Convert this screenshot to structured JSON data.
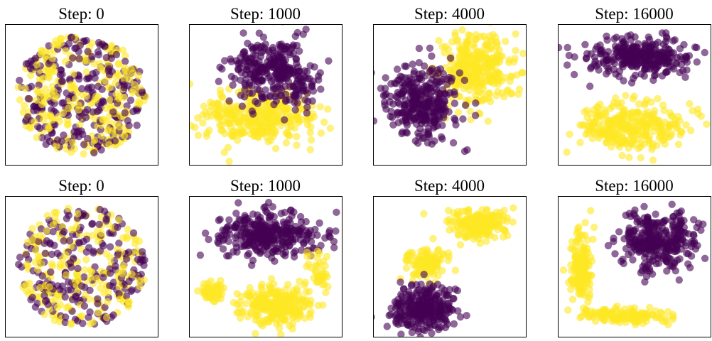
{
  "figure": {
    "rows": 2,
    "cols": 4
  },
  "colors": {
    "class_a": "#440154",
    "class_b": "#FDE725",
    "point_opacity": 0.6
  },
  "chart_data": [
    {
      "type": "scatter",
      "title": "Step: 0",
      "xticks": [],
      "yticks": [],
      "grid": false,
      "xlim": [
        -1,
        1
      ],
      "ylim": [
        -1,
        1
      ],
      "series": [
        {
          "color": "#440154",
          "pattern": "mixed",
          "values": [
            [
              0.0,
              0.0,
              0.85,
              0.85,
              250
            ]
          ]
        },
        {
          "color": "#FDE725",
          "pattern": "mixed",
          "values": [
            [
              0.0,
              0.0,
              0.85,
              0.85,
              250
            ]
          ]
        }
      ]
    },
    {
      "type": "scatter",
      "title": "Step: 1000",
      "xticks": [],
      "yticks": [],
      "grid": false,
      "xlim": [
        -1,
        1
      ],
      "ylim": [
        -1,
        1
      ],
      "series": [
        {
          "color": "#FDE725",
          "pattern": "clusters",
          "values": [
            [
              -0.05,
              -0.35,
              0.75,
              0.42,
              280
            ],
            [
              -0.55,
              -0.2,
              0.3,
              0.3,
              40
            ]
          ]
        },
        {
          "color": "#440154",
          "pattern": "clusters",
          "values": [
            [
              0.05,
              0.35,
              0.6,
              0.5,
              280
            ],
            [
              0.45,
              0.1,
              0.3,
              0.3,
              40
            ]
          ]
        }
      ]
    },
    {
      "type": "scatter",
      "title": "Step: 4000",
      "xticks": [],
      "yticks": [],
      "grid": false,
      "xlim": [
        -1,
        1
      ],
      "ylim": [
        -1,
        1
      ],
      "series": [
        {
          "color": "#FDE725",
          "pattern": "clusters",
          "values": [
            [
              0.35,
              0.35,
              0.55,
              0.6,
              320
            ]
          ]
        },
        {
          "color": "#440154",
          "pattern": "clusters",
          "values": [
            [
              -0.35,
              -0.15,
              0.55,
              0.6,
              320
            ]
          ]
        }
      ]
    },
    {
      "type": "scatter",
      "title": "Step: 16000",
      "xticks": [],
      "yticks": [],
      "grid": false,
      "xlim": [
        -1,
        1
      ],
      "ylim": [
        -1,
        1
      ],
      "series": [
        {
          "color": "#440154",
          "pattern": "clusters",
          "values": [
            [
              0.1,
              0.55,
              0.75,
              0.3,
              300
            ]
          ]
        },
        {
          "color": "#FDE725",
          "pattern": "clusters",
          "values": [
            [
              -0.05,
              -0.45,
              0.8,
              0.38,
              300
            ]
          ]
        }
      ]
    },
    {
      "type": "scatter",
      "title": "Step: 0",
      "xticks": [],
      "yticks": [],
      "grid": false,
      "xlim": [
        -1,
        1
      ],
      "ylim": [
        -1,
        1
      ],
      "series": [
        {
          "color": "#440154",
          "pattern": "mixed",
          "values": [
            [
              0.0,
              0.0,
              0.85,
              0.85,
              210
            ]
          ]
        },
        {
          "color": "#FDE725",
          "pattern": "mixed",
          "values": [
            [
              0.0,
              0.0,
              0.85,
              0.85,
              210
            ]
          ]
        }
      ]
    },
    {
      "type": "scatter",
      "title": "Step: 1000",
      "xticks": [],
      "yticks": [],
      "grid": false,
      "xlim": [
        -1,
        1
      ],
      "ylim": [
        -1,
        1
      ],
      "series": [
        {
          "color": "#440154",
          "pattern": "clusters",
          "values": [
            [
              0.0,
              0.45,
              0.7,
              0.35,
              330
            ]
          ]
        },
        {
          "color": "#FDE725",
          "pattern": "clusters",
          "values": [
            [
              0.15,
              -0.55,
              0.55,
              0.3,
              250
            ],
            [
              -0.7,
              -0.35,
              0.18,
              0.15,
              50
            ],
            [
              0.7,
              -0.05,
              0.15,
              0.3,
              40
            ]
          ]
        }
      ]
    },
    {
      "type": "scatter",
      "title": "Step: 4000",
      "xticks": [],
      "yticks": [],
      "grid": false,
      "xlim": [
        -1,
        1
      ],
      "ylim": [
        -1,
        1
      ],
      "series": [
        {
          "color": "#FDE725",
          "pattern": "clusters",
          "values": [
            [
              0.35,
              0.6,
              0.45,
              0.25,
              200
            ],
            [
              -0.3,
              0.05,
              0.3,
              0.22,
              110
            ]
          ]
        },
        {
          "color": "#440154",
          "pattern": "clusters",
          "values": [
            [
              -0.35,
              -0.6,
              0.5,
              0.35,
              280
            ]
          ]
        }
      ]
    },
    {
      "type": "scatter",
      "title": "Step: 16000",
      "xticks": [],
      "yticks": [],
      "grid": false,
      "xlim": [
        -1,
        1
      ],
      "ylim": [
        -1,
        1
      ],
      "series": [
        {
          "color": "#440154",
          "pattern": "clusters",
          "values": [
            [
              0.3,
              0.35,
              0.55,
              0.45,
              320
            ]
          ]
        },
        {
          "color": "#FDE725",
          "pattern": "clusters",
          "values": [
            [
              -0.7,
              0.0,
              0.15,
              0.6,
              160
            ],
            [
              -0.1,
              -0.7,
              0.6,
              0.12,
              140
            ]
          ]
        }
      ]
    }
  ]
}
